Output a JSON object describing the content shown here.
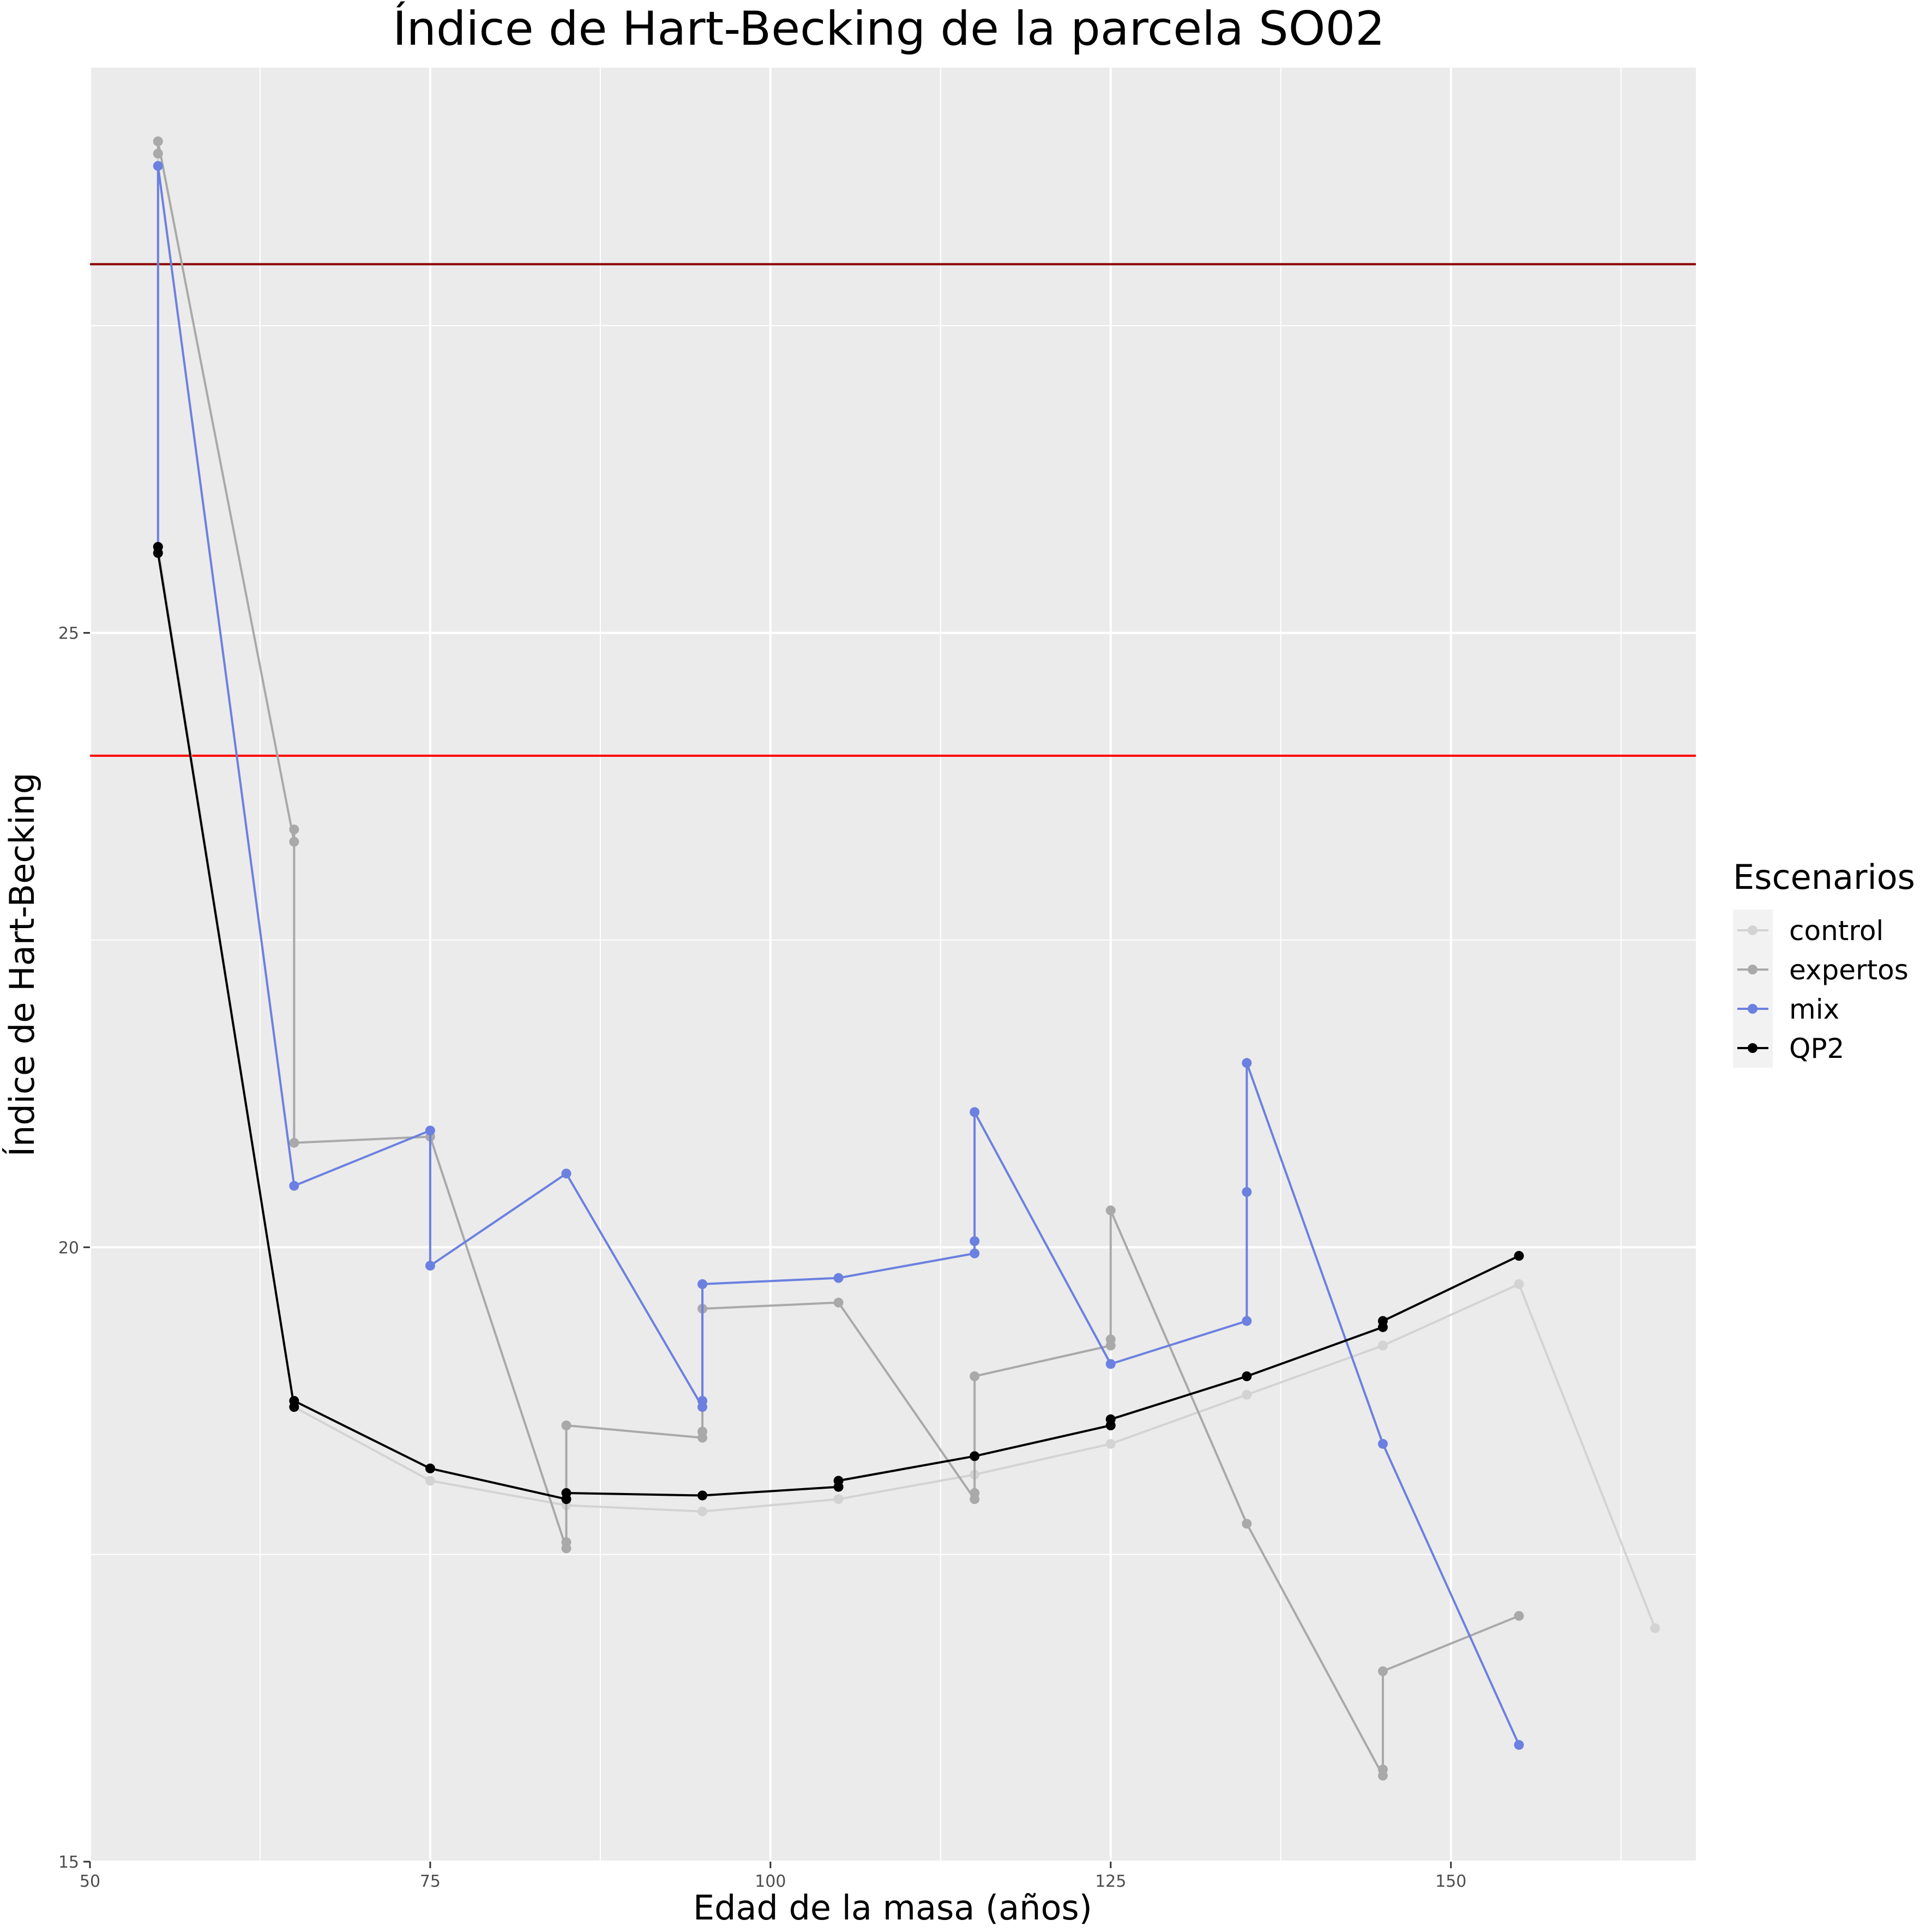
{
  "chart_data": {
    "type": "line",
    "title": "Índice de Hart-Becking de la parcela SO02",
    "xlabel": "Edad de la masa (años)",
    "ylabel": "Índice de Hart-Becking",
    "xlim": [
      50,
      168
    ],
    "ylim": [
      15,
      29.6
    ],
    "x_ticks": [
      50,
      75,
      100,
      125,
      150
    ],
    "y_ticks": [
      15,
      20,
      25
    ],
    "grid": true,
    "reference_lines": [
      {
        "y": 28.0,
        "color": "#8b0000"
      },
      {
        "y": 24.0,
        "color": "#ff0000"
      }
    ],
    "legend": {
      "title": "Escenarios",
      "position": "right"
    },
    "series": [
      {
        "name": "control",
        "color": "#d3d3d3",
        "points": [
          [
            55,
            29.0
          ],
          [
            55,
            25.7
          ],
          [
            65,
            18.7
          ],
          [
            75,
            18.1
          ],
          [
            85,
            17.9
          ],
          [
            95,
            17.85
          ],
          [
            105,
            17.95
          ],
          [
            115,
            18.15
          ],
          [
            125,
            18.4
          ],
          [
            135,
            18.8
          ],
          [
            145,
            19.2
          ],
          [
            155,
            19.7
          ],
          [
            165,
            16.9
          ]
        ]
      },
      {
        "name": "expertos",
        "color": "#a9a9a9",
        "points": [
          [
            55,
            28.9
          ],
          [
            55,
            29.0
          ],
          [
            65,
            23.3
          ],
          [
            65,
            23.4
          ],
          [
            65,
            20.85
          ],
          [
            75,
            20.9
          ],
          [
            85,
            17.55
          ],
          [
            85,
            17.6
          ],
          [
            85,
            18.55
          ],
          [
            95,
            18.45
          ],
          [
            95,
            18.5
          ],
          [
            95,
            19.5
          ],
          [
            105,
            19.55
          ],
          [
            115,
            17.95
          ],
          [
            115,
            18.0
          ],
          [
            115,
            18.95
          ],
          [
            125,
            19.2
          ],
          [
            125,
            19.25
          ],
          [
            125,
            20.3
          ],
          [
            135,
            17.75
          ],
          [
            145,
            15.7
          ],
          [
            145,
            15.75
          ],
          [
            145,
            16.55
          ],
          [
            155,
            17.0
          ]
        ]
      },
      {
        "name": "mix",
        "color": "#6b80e0",
        "points": [
          [
            55,
            25.7
          ],
          [
            55,
            28.8
          ],
          [
            65,
            20.5
          ],
          [
            75,
            20.95
          ],
          [
            75,
            19.85
          ],
          [
            85,
            20.6
          ],
          [
            95,
            18.7
          ],
          [
            95,
            18.75
          ],
          [
            95,
            19.7
          ],
          [
            105,
            19.75
          ],
          [
            115,
            19.95
          ],
          [
            115,
            20.05
          ],
          [
            115,
            21.1
          ],
          [
            125,
            19.05
          ],
          [
            135,
            19.4
          ],
          [
            135,
            20.45
          ],
          [
            135,
            21.5
          ],
          [
            145,
            18.4
          ],
          [
            155,
            15.95
          ]
        ]
      },
      {
        "name": "QP2",
        "color": "#000000",
        "points": [
          [
            55,
            25.7
          ],
          [
            55,
            25.65
          ],
          [
            65,
            18.7
          ],
          [
            65,
            18.75
          ],
          [
            75,
            18.2
          ],
          [
            85,
            17.95
          ],
          [
            85,
            18.0
          ],
          [
            95,
            17.98
          ],
          [
            105,
            18.05
          ],
          [
            105,
            18.1
          ],
          [
            115,
            18.3
          ],
          [
            125,
            18.55
          ],
          [
            125,
            18.6
          ],
          [
            135,
            18.95
          ],
          [
            145,
            19.35
          ],
          [
            145,
            19.4
          ],
          [
            155,
            19.93
          ]
        ]
      }
    ]
  }
}
